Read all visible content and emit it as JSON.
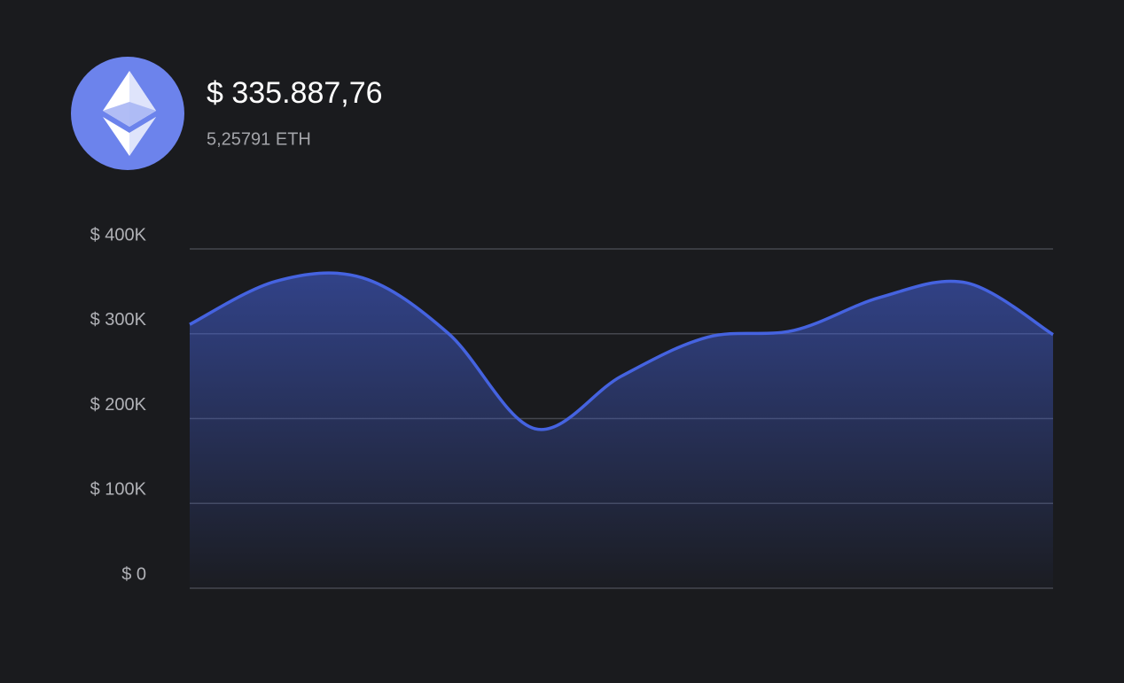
{
  "header": {
    "balance": "$ 335.887,76",
    "amount": "5,25791 ETH"
  },
  "chart_data": {
    "type": "area",
    "categories": [
      null,
      null,
      null,
      null,
      null,
      null,
      null,
      null,
      null,
      null,
      null
    ],
    "values": [
      311000,
      362000,
      366000,
      300000,
      188000,
      250000,
      296000,
      304000,
      343000,
      360000,
      299000
    ],
    "color": "#4563e0",
    "ylim": [
      0,
      400000
    ],
    "yticks": [
      {
        "value": 0,
        "label": "$ 0"
      },
      {
        "value": 100000,
        "label": "$ 100K"
      },
      {
        "value": 200000,
        "label": "$ 200K"
      },
      {
        "value": 300000,
        "label": "$ 300K"
      },
      {
        "value": 400000,
        "label": "$ 400K"
      }
    ],
    "grid": true
  }
}
